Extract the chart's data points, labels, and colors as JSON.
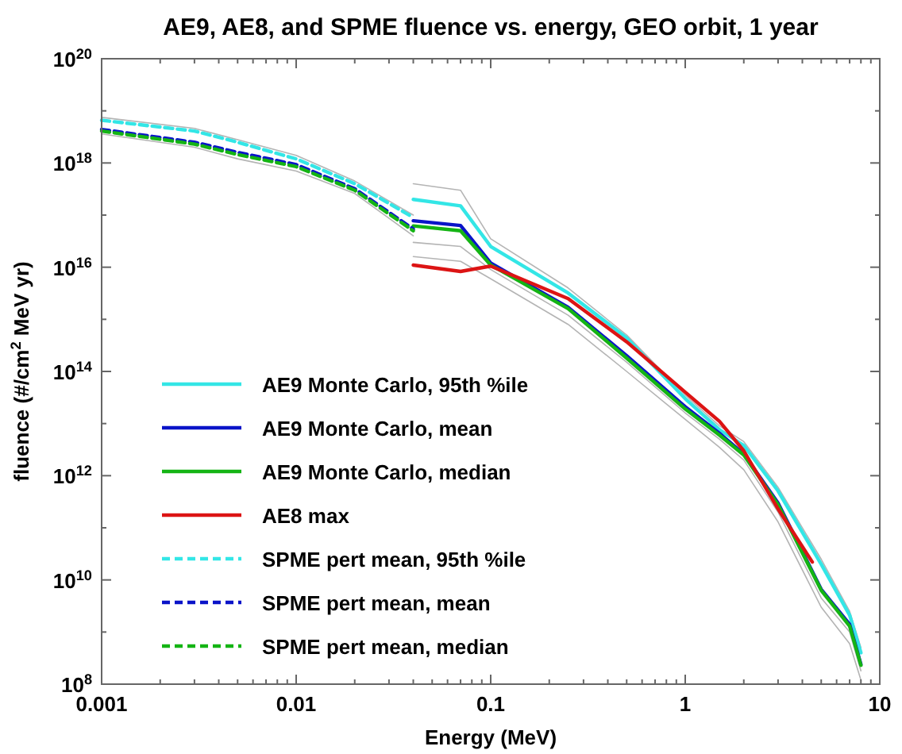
{
  "chart_data": {
    "type": "line",
    "title": "AE9, AE8, and SPME fluence vs. energy, GEO orbit, 1 year",
    "xlabel": "Energy (MeV)",
    "ylabel": "fluence (#/cm$^{2}$ MeV yr)",
    "log": "xy",
    "xlim": [
      0.001,
      10
    ],
    "ylim": [
      100000000.0,
      1e+20
    ],
    "xticks": [
      {
        "value": 0.001,
        "label": "0.001"
      },
      {
        "value": 0.002,
        "label": null
      },
      {
        "value": 0.003,
        "label": null
      },
      {
        "value": 0.004,
        "label": null
      },
      {
        "value": 0.005,
        "label": null
      },
      {
        "value": 0.006,
        "label": null
      },
      {
        "value": 0.007,
        "label": null
      },
      {
        "value": 0.008,
        "label": null
      },
      {
        "value": 0.009,
        "label": null
      },
      {
        "value": 0.01,
        "label": "0.01"
      },
      {
        "value": 0.02,
        "label": null
      },
      {
        "value": 0.03,
        "label": null
      },
      {
        "value": 0.04,
        "label": null
      },
      {
        "value": 0.05,
        "label": null
      },
      {
        "value": 0.06,
        "label": null
      },
      {
        "value": 0.07,
        "label": null
      },
      {
        "value": 0.08,
        "label": null
      },
      {
        "value": 0.09,
        "label": null
      },
      {
        "value": 0.1,
        "label": "0.1"
      },
      {
        "value": 0.2,
        "label": null
      },
      {
        "value": 0.3,
        "label": null
      },
      {
        "value": 0.4,
        "label": null
      },
      {
        "value": 0.5,
        "label": null
      },
      {
        "value": 0.6,
        "label": null
      },
      {
        "value": 0.7,
        "label": null
      },
      {
        "value": 0.8,
        "label": null
      },
      {
        "value": 0.9,
        "label": null
      },
      {
        "value": 1,
        "label": "1"
      },
      {
        "value": 2,
        "label": null
      },
      {
        "value": 3,
        "label": null
      },
      {
        "value": 4,
        "label": null
      },
      {
        "value": 5,
        "label": null
      },
      {
        "value": 6,
        "label": null
      },
      {
        "value": 7,
        "label": null
      },
      {
        "value": 8,
        "label": null
      },
      {
        "value": 9,
        "label": null
      },
      {
        "value": 10,
        "label": "10"
      }
    ],
    "yticks": [
      {
        "value": 100000000.0,
        "label": "10$^{8}$"
      },
      {
        "value": 1000000000.0,
        "label": null
      },
      {
        "value": 10000000000.0,
        "label": "10$^{10}$"
      },
      {
        "value": 100000000000.0,
        "label": null
      },
      {
        "value": 1000000000000.0,
        "label": "10$^{12}$"
      },
      {
        "value": 10000000000000.0,
        "label": null
      },
      {
        "value": 100000000000000.0,
        "label": "10$^{14}$"
      },
      {
        "value": 1000000000000000.0,
        "label": null
      },
      {
        "value": 1e+16,
        "label": "10$^{16}$"
      },
      {
        "value": 1e+17,
        "label": null
      },
      {
        "value": 1e+18,
        "label": "10$^{18}$"
      },
      {
        "value": 1e+19,
        "label": null
      },
      {
        "value": 1e+20,
        "label": "10$^{20}$"
      }
    ],
    "legend": "bottom left",
    "series": [
      {
        "color": "#b4b4b4",
        "x": [
          0.001,
          0.003,
          0.005,
          0.01,
          0.02,
          0.04
        ],
        "values": [
          7.5e+18,
          4.6e+18,
          2.8e+18,
          1.4e+18,
          4.5e+17,
          1e+17
        ]
      },
      {
        "color": "#b4b4b4",
        "x": [
          0.001,
          0.003,
          0.005,
          0.01,
          0.02,
          0.04
        ],
        "values": [
          3.6e+18,
          2e+18,
          1.2e+18,
          7e+17,
          2.6e+17,
          4e+16
        ]
      },
      {
        "color": "#b4b4b4",
        "x": [
          0.04,
          0.07,
          0.1,
          0.25,
          0.5,
          1,
          1.5,
          2,
          3,
          5,
          7,
          8
        ],
        "values": [
          4e+17,
          3e+17,
          3.5e+16,
          4000000000000000.0,
          500000000000000.0,
          35000000000000.0,
          9000000000000.0,
          4500000000000.0,
          600000000000.0,
          25000000000.0,
          2500000000.0,
          500000000.0
        ]
      },
      {
        "color": "#b4b4b4",
        "x": [
          0.04,
          0.07,
          0.1,
          0.25,
          0.5,
          1,
          1.5,
          2,
          3,
          5,
          7,
          8
        ],
        "values": [
          3e+16,
          2.5e+16,
          9000000000000000.0,
          1200000000000000.0,
          150000000000000.0,
          16000000000000.0,
          5000000000000.0,
          2000000000000.0,
          200000000000.0,
          4500000000.0,
          1000000000.0,
          180000000.0
        ]
      },
      {
        "color": "#b4b4b4",
        "x": [
          0.04,
          0.07,
          0.1,
          0.25,
          0.5,
          1,
          1.5,
          2,
          3,
          5,
          7,
          8
        ],
        "values": [
          1.6e+16,
          1.3e+16,
          6000000000000000.0,
          800000000000000.0,
          100000000000000.0,
          12000000000000.0,
          3500000000000.0,
          1300000000000.0,
          130000000000.0,
          3000000000.0,
          600000000.0,
          120000000.0
        ]
      },
      {
        "name": "AE9 Monte Carlo, 95th %ile",
        "color": "#33e6e6",
        "line_style": "solid",
        "x": [
          0.04,
          0.07,
          0.1,
          0.25,
          0.5,
          1,
          1.5,
          2,
          3,
          5,
          7,
          8
        ],
        "values": [
          2e+17,
          1.5e+17,
          2.5e+16,
          3200000000000000.0,
          440000000000000.0,
          30000000000000.0,
          7600000000000.0,
          3800000000000.0,
          510000000000.0,
          20000000000.0,
          2100000000.0,
          400000000.0
        ]
      },
      {
        "name": "AE9 Monte Carlo, mean",
        "color": "#0a14c8",
        "line_style": "solid",
        "x": [
          0.04,
          0.07,
          0.1,
          0.25,
          0.5,
          1,
          1.5,
          2,
          3,
          5,
          7,
          8
        ],
        "values": [
          7.8e+16,
          6.3e+16,
          1.2e+16,
          1700000000000000.0,
          200000000000000.0,
          21000000000000.0,
          6500000000000.0,
          2600000000000.0,
          300000000000.0,
          6600000000.0,
          1400000000.0,
          240000000.0
        ]
      },
      {
        "name": "AE9 Monte Carlo, median",
        "color": "#14b414",
        "line_style": "solid",
        "x": [
          0.04,
          0.07,
          0.1,
          0.25,
          0.5,
          1,
          1.5,
          2,
          3,
          5,
          7,
          8
        ],
        "values": [
          6.2e+16,
          5e+16,
          1.1e+16,
          1600000000000000.0,
          180000000000000.0,
          19000000000000.0,
          6000000000000.0,
          2500000000000.0,
          280000000000.0,
          6300000000.0,
          1300000000.0,
          230000000.0
        ]
      },
      {
        "name": "AE8 max",
        "color": "#dc1414",
        "line_style": "solid",
        "x": [
          0.04,
          0.07,
          0.1,
          0.25,
          0.5,
          1,
          1.5,
          2,
          3,
          4.5
        ],
        "values": [
          1.1e+16,
          8300000000000000.0,
          1.05e+16,
          2500000000000000.0,
          370000000000000.0,
          40000000000000.0,
          11000000000000.0,
          3000000000000.0,
          230000000000.0,
          22000000000.0
        ]
      },
      {
        "name": "SPME pert mean, 95th %ile",
        "color": "#33e6e6",
        "line_style": "dashed",
        "x": [
          0.001,
          0.003,
          0.005,
          0.01,
          0.02,
          0.04
        ],
        "values": [
          6.6e+18,
          4.1e+18,
          2.5e+18,
          1.2e+18,
          4e+17,
          9e+16
        ]
      },
      {
        "name": "SPME pert mean, mean",
        "color": "#0a14c8",
        "line_style": "dashed",
        "x": [
          0.001,
          0.003,
          0.005,
          0.01,
          0.02,
          0.04
        ],
        "values": [
          4.4e+18,
          2.5e+18,
          1.6e+18,
          9.3e+17,
          3.2e+17,
          5.4e+16
        ]
      },
      {
        "name": "SPME pert mean, median",
        "color": "#14b414",
        "line_style": "dashed",
        "x": [
          0.001,
          0.003,
          0.005,
          0.01,
          0.02,
          0.04
        ],
        "values": [
          4.1e+18,
          2.3e+18,
          1.45e+18,
          8.5e+17,
          3e+17,
          5e+16
        ]
      }
    ]
  }
}
